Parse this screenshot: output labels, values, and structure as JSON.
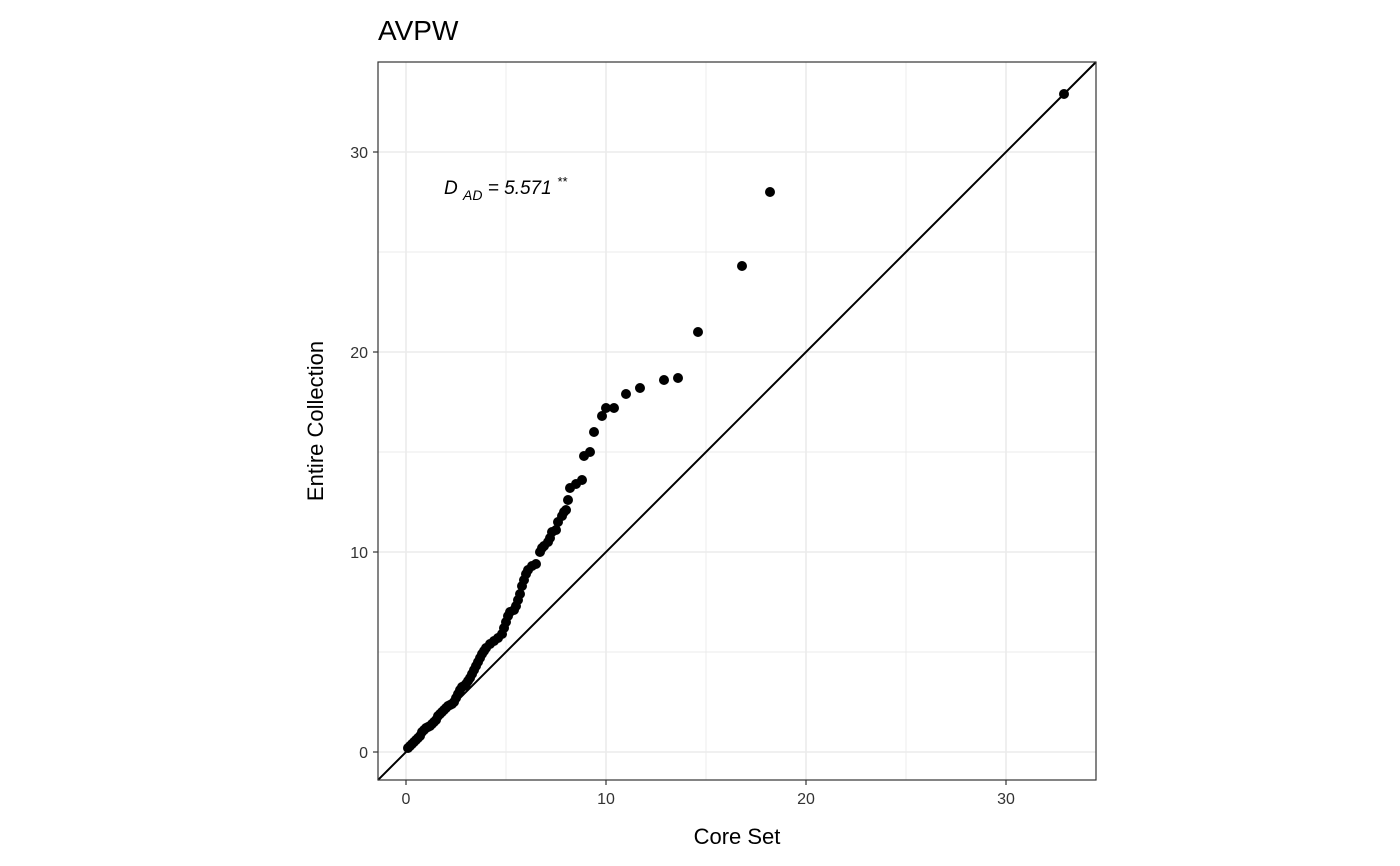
{
  "chart_data": {
    "type": "scatter",
    "title": "AVPW",
    "xlabel": "Core Set",
    "ylabel": "Entire Collection",
    "xlim": [
      -1.4,
      34.5
    ],
    "ylim": [
      -1.4,
      34.5
    ],
    "x_ticks": [
      0,
      10,
      20,
      30
    ],
    "y_ticks": [
      0,
      10,
      20,
      30
    ],
    "x_tick_labels": [
      "0",
      "10",
      "20",
      "30"
    ],
    "y_tick_labels": [
      "0",
      "10",
      "20",
      "30"
    ],
    "grid": true,
    "reference_line": {
      "slope": 1,
      "intercept": 0
    },
    "annotation": {
      "prefix": "D",
      "subscript": "AD",
      "value_text": " = 5.571",
      "superscript": "**",
      "x": 1.9,
      "y": 27.9
    },
    "colors": {
      "points": "#000000",
      "line": "#000000",
      "grid": "#ebebeb",
      "frame": "#333333"
    },
    "points": [
      [
        0.1,
        0.2
      ],
      [
        0.2,
        0.3
      ],
      [
        0.3,
        0.4
      ],
      [
        0.4,
        0.5
      ],
      [
        0.5,
        0.6
      ],
      [
        0.6,
        0.7
      ],
      [
        0.7,
        0.8
      ],
      [
        0.8,
        1.0
      ],
      [
        0.9,
        1.1
      ],
      [
        1.0,
        1.2
      ],
      [
        1.1,
        1.25
      ],
      [
        1.2,
        1.3
      ],
      [
        1.3,
        1.4
      ],
      [
        1.4,
        1.5
      ],
      [
        1.5,
        1.6
      ],
      [
        1.6,
        1.8
      ],
      [
        1.7,
        1.9
      ],
      [
        1.8,
        2.0
      ],
      [
        1.9,
        2.1
      ],
      [
        2.0,
        2.2
      ],
      [
        2.1,
        2.3
      ],
      [
        2.2,
        2.35
      ],
      [
        2.3,
        2.4
      ],
      [
        2.4,
        2.5
      ],
      [
        2.5,
        2.7
      ],
      [
        2.6,
        2.9
      ],
      [
        2.7,
        3.1
      ],
      [
        2.8,
        3.25
      ],
      [
        2.9,
        3.3
      ],
      [
        3.0,
        3.4
      ],
      [
        3.1,
        3.55
      ],
      [
        3.2,
        3.7
      ],
      [
        3.3,
        3.9
      ],
      [
        3.4,
        4.1
      ],
      [
        3.5,
        4.3
      ],
      [
        3.6,
        4.5
      ],
      [
        3.7,
        4.7
      ],
      [
        3.8,
        4.9
      ],
      [
        3.9,
        5.05
      ],
      [
        4.0,
        5.2
      ],
      [
        4.2,
        5.4
      ],
      [
        4.4,
        5.55
      ],
      [
        4.6,
        5.7
      ],
      [
        4.8,
        5.9
      ],
      [
        4.9,
        6.2
      ],
      [
        5.0,
        6.5
      ],
      [
        5.1,
        6.8
      ],
      [
        5.2,
        7.0
      ],
      [
        5.4,
        7.1
      ],
      [
        5.5,
        7.3
      ],
      [
        5.6,
        7.6
      ],
      [
        5.7,
        7.9
      ],
      [
        5.8,
        8.3
      ],
      [
        5.9,
        8.6
      ],
      [
        6.0,
        8.9
      ],
      [
        6.1,
        9.1
      ],
      [
        6.3,
        9.3
      ],
      [
        6.5,
        9.4
      ],
      [
        6.7,
        10.0
      ],
      [
        6.8,
        10.2
      ],
      [
        6.9,
        10.3
      ],
      [
        7.1,
        10.5
      ],
      [
        7.2,
        10.7
      ],
      [
        7.3,
        11.0
      ],
      [
        7.5,
        11.1
      ],
      [
        7.6,
        11.5
      ],
      [
        7.8,
        11.8
      ],
      [
        7.9,
        12.0
      ],
      [
        8.0,
        12.1
      ],
      [
        8.1,
        12.6
      ],
      [
        8.2,
        13.2
      ],
      [
        8.5,
        13.4
      ],
      [
        8.8,
        13.6
      ],
      [
        8.9,
        14.8
      ],
      [
        9.2,
        15.0
      ],
      [
        9.4,
        16.0
      ],
      [
        9.8,
        16.8
      ],
      [
        10.0,
        17.2
      ],
      [
        10.4,
        17.2
      ],
      [
        11.0,
        17.9
      ],
      [
        11.7,
        18.2
      ],
      [
        12.9,
        18.6
      ],
      [
        13.6,
        18.7
      ],
      [
        14.6,
        21.0
      ],
      [
        16.8,
        24.3
      ],
      [
        18.2,
        28.0
      ],
      [
        32.9,
        32.9
      ]
    ]
  }
}
